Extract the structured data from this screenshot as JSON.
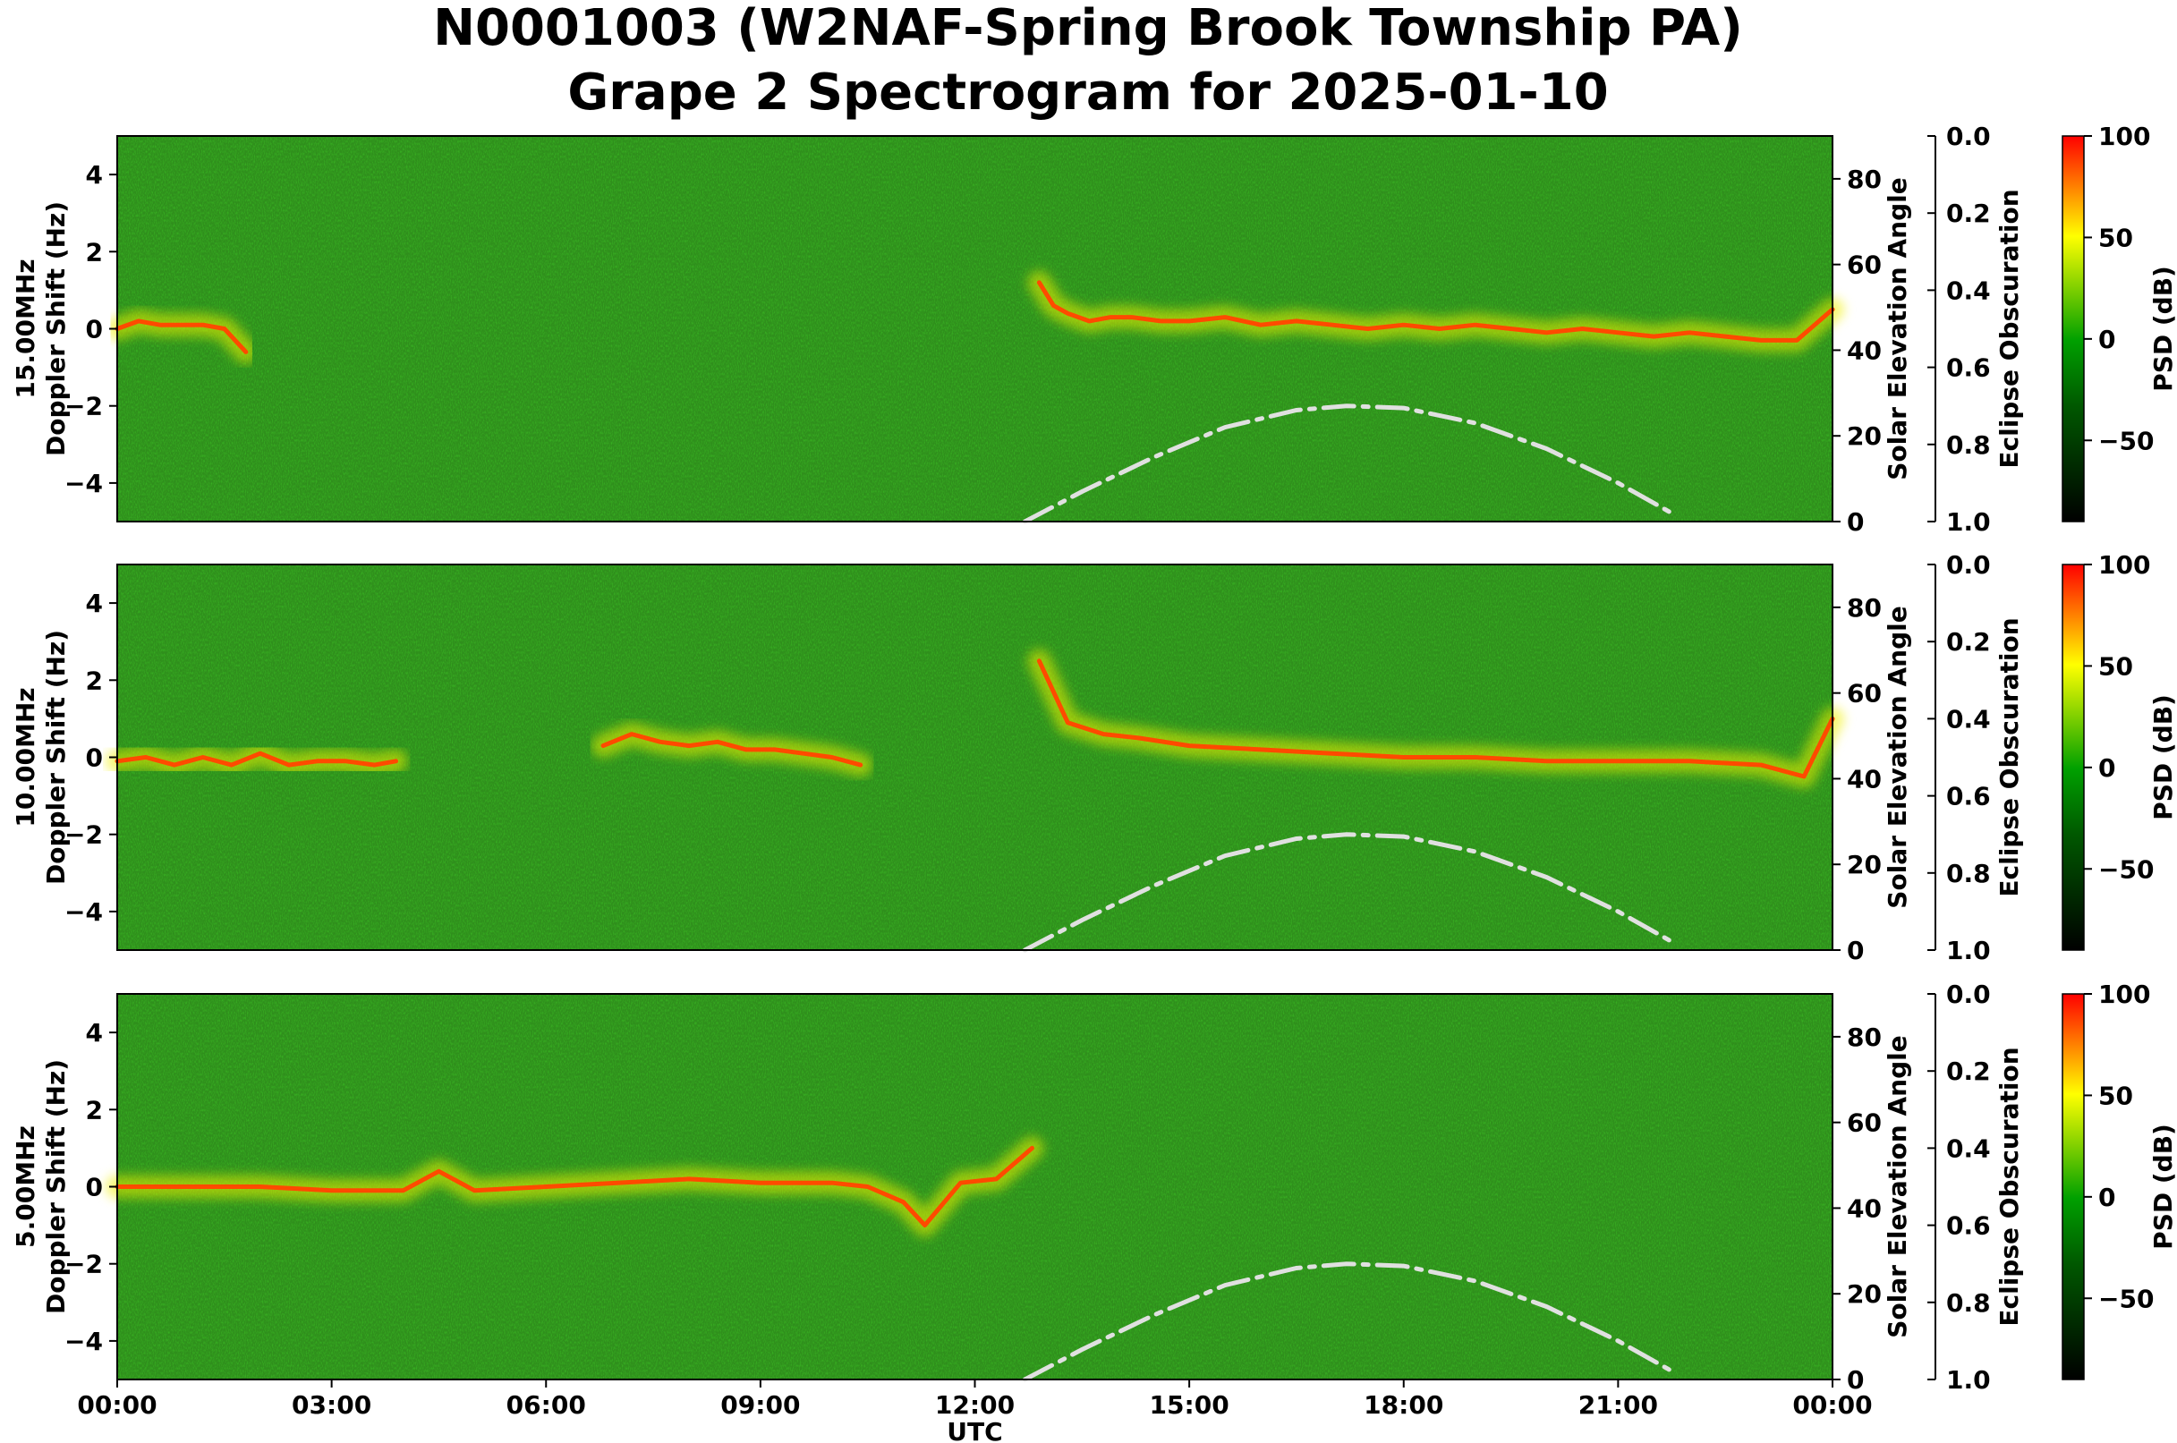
{
  "title_line1": "N0001003 (W2NAF-Spring Brook Township PA)",
  "title_line2": "Grape 2 Spectrogram for 2025-01-10",
  "colors": {
    "cmap": [
      "#000000",
      "#005800",
      "#00a000",
      "#ffff00",
      "#ff0000"
    ],
    "background_green": "#2f8f1c",
    "elevation_curve": "#e0e0e0"
  },
  "chart_data": [
    {
      "type": "heatmap",
      "panel_label": "15.00MHz",
      "ylabel": "Doppler Shift (Hz)",
      "y2label": "Solar Elevation Angle",
      "y3label": "Eclipse Obscuration",
      "colorbar_label": "PSD (dB)",
      "xlim_hours": [
        0,
        24
      ],
      "ylim": [
        -5,
        5
      ],
      "y2lim": [
        0,
        90
      ],
      "y3lim": [
        1.0,
        0.0
      ],
      "clim": [
        -90,
        100
      ],
      "yticks": [
        "4",
        "2",
        "0",
        "−2",
        "−4"
      ],
      "y2ticks": [
        "80",
        "60",
        "40",
        "20",
        "0"
      ],
      "y3ticks": [
        "0.0",
        "0.2",
        "0.4",
        "0.6",
        "0.8",
        "1.0"
      ],
      "cbticks": [
        "100",
        "50",
        "0",
        "−50"
      ],
      "traces": [
        {
          "x": [
            0.0,
            0.3,
            0.6,
            0.9,
            1.2,
            1.5,
            1.8
          ],
          "y": [
            0.0,
            0.2,
            0.1,
            0.1,
            0.1,
            0.0,
            -0.6
          ]
        },
        {
          "x": [
            12.9,
            13.1,
            13.3,
            13.6,
            13.9,
            14.2,
            14.6,
            15.0,
            15.5,
            16.0,
            16.5,
            17.0,
            17.5,
            18.0,
            18.5,
            19.0,
            19.5,
            20.0,
            20.5,
            21.0,
            21.5,
            22.0,
            22.5,
            23.0,
            23.5,
            24.0
          ],
          "y": [
            1.2,
            0.6,
            0.4,
            0.2,
            0.3,
            0.3,
            0.2,
            0.2,
            0.3,
            0.1,
            0.2,
            0.1,
            0.0,
            0.1,
            0.0,
            0.1,
            0.0,
            -0.1,
            0.0,
            -0.1,
            -0.2,
            -0.1,
            -0.2,
            -0.3,
            -0.3,
            0.5
          ]
        }
      ],
      "elevation_curve": {
        "x": [
          12.7,
          13.5,
          14.5,
          15.5,
          16.5,
          17.2,
          18.0,
          19.0,
          20.0,
          21.0,
          21.8
        ],
        "y": [
          0,
          7,
          15,
          22,
          26,
          27,
          26.5,
          23,
          17,
          9,
          1.5
        ]
      }
    },
    {
      "type": "heatmap",
      "panel_label": "10.00MHz",
      "ylabel": "Doppler Shift (Hz)",
      "y2label": "Solar Elevation Angle",
      "y3label": "Eclipse Obscuration",
      "colorbar_label": "PSD (dB)",
      "xlim_hours": [
        0,
        24
      ],
      "ylim": [
        -5,
        5
      ],
      "y2lim": [
        0,
        90
      ],
      "y3lim": [
        1.0,
        0.0
      ],
      "clim": [
        -90,
        100
      ],
      "yticks": [
        "4",
        "2",
        "0",
        "−2",
        "−4"
      ],
      "y2ticks": [
        "80",
        "60",
        "40",
        "20",
        "0"
      ],
      "y3ticks": [
        "0.0",
        "0.2",
        "0.4",
        "0.6",
        "0.8",
        "1.0"
      ],
      "cbticks": [
        "100",
        "50",
        "0",
        "−50"
      ],
      "traces": [
        {
          "x": [
            0.0,
            0.4,
            0.8,
            1.2,
            1.6,
            2.0,
            2.4,
            2.8,
            3.2,
            3.6,
            3.9
          ],
          "y": [
            -0.1,
            0.0,
            -0.2,
            0.0,
            -0.2,
            0.1,
            -0.2,
            -0.1,
            -0.1,
            -0.2,
            -0.1
          ]
        },
        {
          "x": [
            6.8,
            7.2,
            7.6,
            8.0,
            8.4,
            8.8,
            9.2,
            9.6,
            10.0,
            10.4
          ],
          "y": [
            0.3,
            0.6,
            0.4,
            0.3,
            0.4,
            0.2,
            0.2,
            0.1,
            0.0,
            -0.2
          ]
        },
        {
          "x": [
            12.9,
            13.3,
            13.8,
            14.3,
            15.0,
            16.0,
            17.0,
            18.0,
            19.0,
            20.0,
            21.0,
            22.0,
            23.0,
            23.6,
            24.0
          ],
          "y": [
            2.5,
            0.9,
            0.6,
            0.5,
            0.3,
            0.2,
            0.1,
            0.0,
            0.0,
            -0.1,
            -0.1,
            -0.1,
            -0.2,
            -0.5,
            1.0
          ]
        }
      ],
      "elevation_curve": {
        "x": [
          12.7,
          13.5,
          14.5,
          15.5,
          16.5,
          17.2,
          18.0,
          19.0,
          20.0,
          21.0,
          21.8
        ],
        "y": [
          0,
          7,
          15,
          22,
          26,
          27,
          26.5,
          23,
          17,
          9,
          1.5
        ]
      }
    },
    {
      "type": "heatmap",
      "panel_label": "5.00MHz",
      "ylabel": "Doppler Shift (Hz)",
      "y2label": "Solar Elevation Angle",
      "y3label": "Eclipse Obscuration",
      "colorbar_label": "PSD (dB)",
      "xlabel": "UTC",
      "xlim_hours": [
        0,
        24
      ],
      "ylim": [
        -5,
        5
      ],
      "y2lim": [
        0,
        90
      ],
      "y3lim": [
        1.0,
        0.0
      ],
      "clim": [
        -90,
        100
      ],
      "xticks": [
        "00:00",
        "03:00",
        "06:00",
        "09:00",
        "12:00",
        "15:00",
        "18:00",
        "21:00",
        "00:00"
      ],
      "yticks": [
        "4",
        "2",
        "0",
        "−2",
        "−4"
      ],
      "y2ticks": [
        "80",
        "60",
        "40",
        "20",
        "0"
      ],
      "y3ticks": [
        "0.0",
        "0.2",
        "0.4",
        "0.6",
        "0.8",
        "1.0"
      ],
      "cbticks": [
        "100",
        "50",
        "0",
        "−50"
      ],
      "traces": [
        {
          "x": [
            0.0,
            1.0,
            2.0,
            3.0,
            4.0,
            4.5,
            5.0,
            6.0,
            7.0,
            8.0,
            9.0,
            10.0,
            10.5,
            11.0,
            11.3,
            11.8,
            12.3,
            12.8
          ],
          "y": [
            0.0,
            0.0,
            0.0,
            -0.1,
            -0.1,
            0.4,
            -0.1,
            0.0,
            0.1,
            0.2,
            0.1,
            0.1,
            0.0,
            -0.4,
            -1.0,
            0.1,
            0.2,
            1.0
          ]
        }
      ],
      "elevation_curve": {
        "x": [
          12.7,
          13.5,
          14.5,
          15.5,
          16.5,
          17.2,
          18.0,
          19.0,
          20.0,
          21.0,
          21.8
        ],
        "y": [
          0,
          7,
          15,
          22,
          26,
          27,
          26.5,
          23,
          17,
          9,
          1.5
        ]
      }
    }
  ]
}
